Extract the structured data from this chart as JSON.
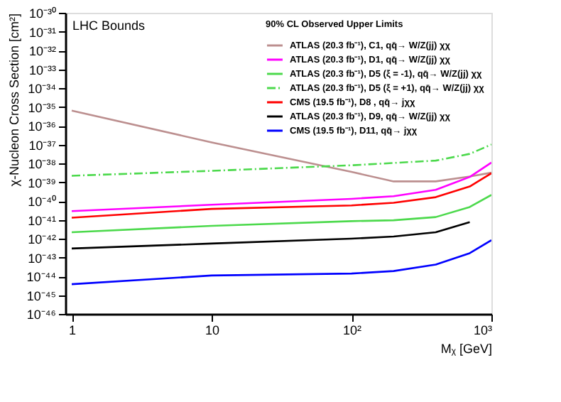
{
  "chart_data": {
    "type": "line",
    "xlabel": "Mᵪ [GeV]",
    "ylabel": "χ-Nucleon Cross Section [cm²]",
    "legend_title": "90% CL Observed Upper Limits",
    "annotations": [
      "LHC Bounds"
    ],
    "log": "xy",
    "grid": false,
    "legend": "top right",
    "marker": "none",
    "xlim": [
      0.9,
      1000
    ],
    "xticks": [
      1,
      10,
      {
        "value": 100,
        "label": "10²"
      },
      {
        "value": 1000,
        "label": "10³"
      }
    ],
    "ylim": [
      1e-46,
      1e-30
    ],
    "yticks": [
      {
        "value": 1e-30,
        "label": "10⁻³⁰"
      },
      {
        "value": 1e-31,
        "label": "10⁻³¹"
      },
      {
        "value": 1e-32,
        "label": "10⁻³²"
      },
      {
        "value": 1e-33,
        "label": "10⁻³³"
      },
      {
        "value": 1e-34,
        "label": "10⁻³⁴"
      },
      {
        "value": 1e-35,
        "label": "10⁻³⁵"
      },
      {
        "value": 1e-36,
        "label": "10⁻³⁶"
      },
      {
        "value": 1e-37,
        "label": "10⁻³⁷"
      },
      {
        "value": 1e-38,
        "label": "10⁻³⁸"
      },
      {
        "value": 1e-39,
        "label": "10⁻³⁹"
      },
      {
        "value": 1e-40,
        "label": "10⁻⁴⁰"
      },
      {
        "value": 1e-41,
        "label": "10⁻⁴¹"
      },
      {
        "value": 1e-42,
        "label": "10⁻⁴²"
      },
      {
        "value": 1e-43,
        "label": "10⁻⁴³"
      },
      {
        "value": 1e-44,
        "label": "10⁻⁴⁴"
      },
      {
        "value": 1e-45,
        "label": "10⁻⁴⁵"
      },
      {
        "value": 1e-46,
        "label": "10⁻⁴⁶"
      }
    ],
    "x": [
      1,
      10,
      100,
      200,
      400,
      700,
      1000
    ],
    "series": [
      {
        "name": "ATLAS (20.3 fb⁻¹), C1, qq̄→ W/Z(jj) χχ",
        "color": "#bc8f8f",
        "line_style": "solid",
        "values": [
          6.3e-36,
          1.3e-37,
          3.5e-39,
          1.1e-39,
          1.1e-39,
          2e-39,
          3.2e-39
        ]
      },
      {
        "name": "ATLAS (20.3 fb⁻¹), D1, qq̄→ W/Z(jj) χχ",
        "color": "#ff00ff",
        "line_style": "solid",
        "values": [
          2.9e-41,
          6.3e-41,
          1.3e-40,
          1.8e-40,
          3.9e-40,
          1.9e-39,
          1.1e-38
        ]
      },
      {
        "name": "ATLAS (20.3 fb⁻¹), D5 (ξ = -1), qq̄→ W/Z(jj) χχ",
        "color": "#4cd94c",
        "line_style": "solid",
        "values": [
          2.2e-42,
          4.8e-42,
          8.5e-42,
          9.5e-42,
          1.4e-41,
          4.8e-41,
          2.1e-40
        ]
      },
      {
        "name": "ATLAS (20.3 fb⁻¹), D5 (ξ = +1), qq̄→ W/Z(jj) χχ",
        "color": "#4cd94c",
        "line_style": "dashed",
        "x": [
          1,
          10,
          100,
          400,
          700,
          1000
        ],
        "values": [
          2.2e-39,
          4e-39,
          7.9e-39,
          1.4e-38,
          3.2e-38,
          1e-37
        ]
      },
      {
        "name": "CMS (19.5 fb⁻¹), D8 , qq̄→ jχχ",
        "color": "#ff0000",
        "line_style": "solid",
        "values": [
          1.3e-41,
          3.8e-41,
          5.8e-41,
          8.1e-41,
          1.6e-40,
          5.9e-40,
          3e-39
        ]
      },
      {
        "name": "ATLAS (20.3 fb⁻¹), D9, qq̄→ W/Z(jj) χχ",
        "color": "#000000",
        "line_style": "solid",
        "x": [
          1,
          10,
          100,
          200,
          400,
          700
        ],
        "values": [
          3e-43,
          5.5e-43,
          1e-42,
          1.3e-42,
          2.2e-42,
          7.6e-42
        ]
      },
      {
        "name": "CMS (19.5 fb⁻¹), D11, qq̄→ jχχ",
        "color": "#0000ff",
        "line_style": "solid",
        "values": [
          3.8e-45,
          1.1e-44,
          1.4e-44,
          1.9e-44,
          4.2e-44,
          1.7e-43,
          8.3e-43
        ]
      }
    ]
  }
}
